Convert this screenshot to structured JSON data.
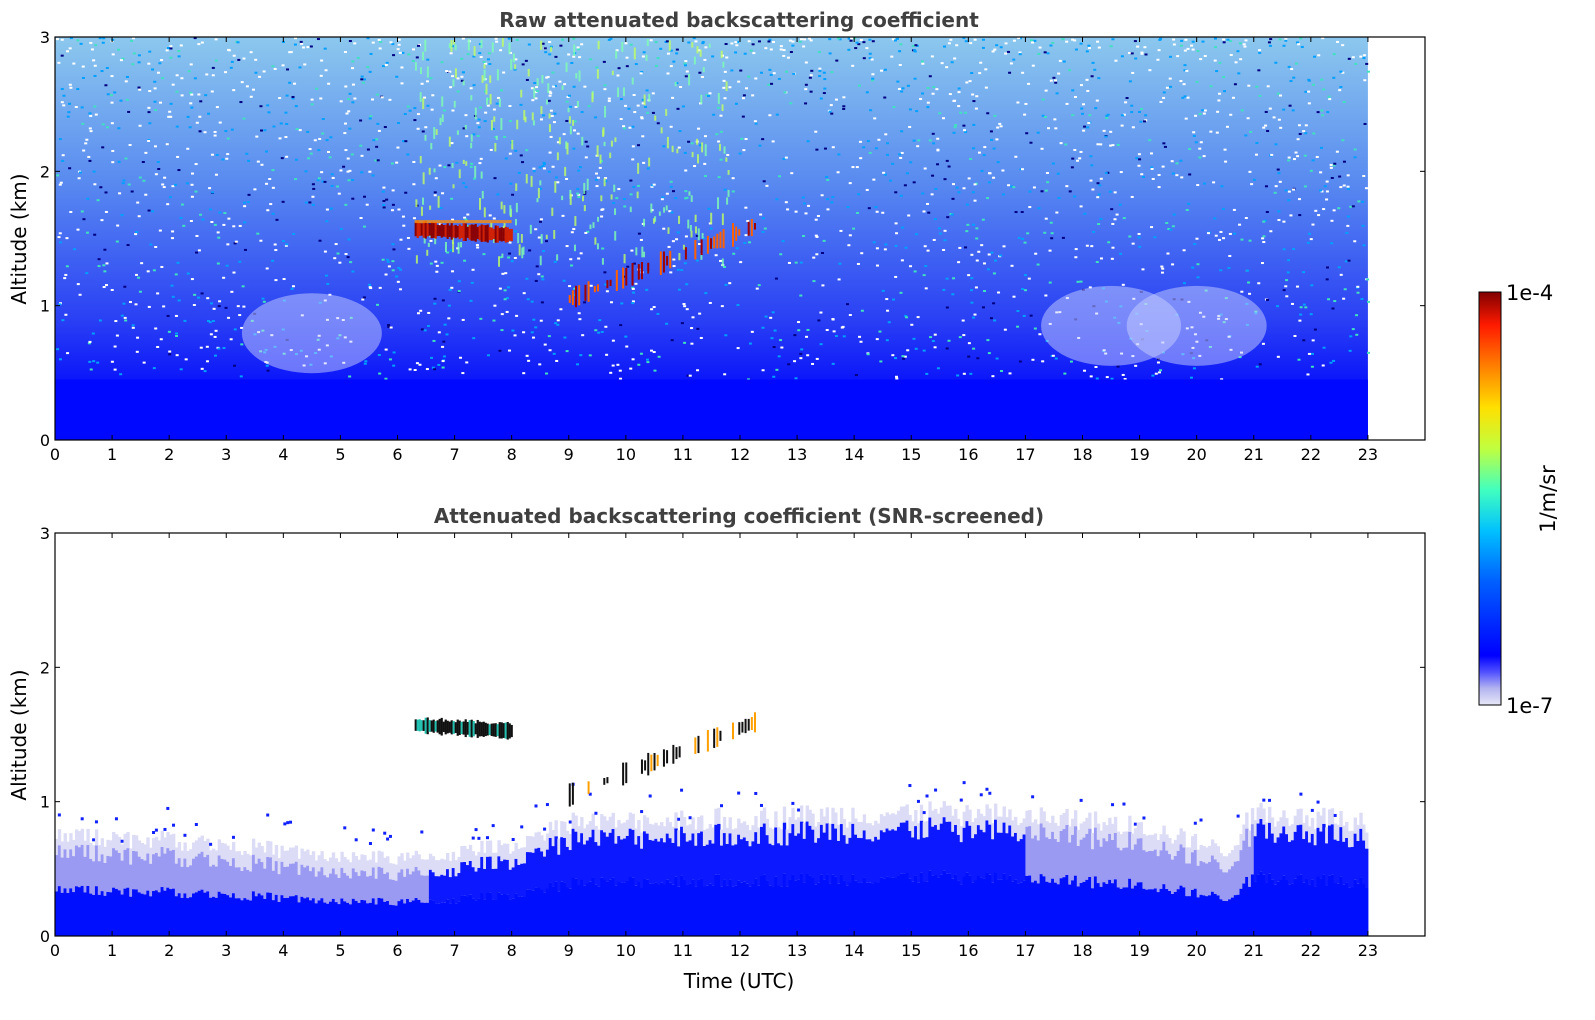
{
  "chart_data": [
    {
      "type": "heatmap",
      "title": "Raw attenuated backscattering coefficient",
      "xlabel": "",
      "ylabel": "Altitude (km)",
      "xlim": [
        0,
        24
      ],
      "ylim": [
        0,
        3
      ],
      "xticks": [
        "0",
        "1",
        "2",
        "3",
        "4",
        "5",
        "6",
        "7",
        "8",
        "9",
        "10",
        "11",
        "12",
        "13",
        "14",
        "15",
        "16",
        "17",
        "18",
        "19",
        "20",
        "21",
        "22",
        "23"
      ],
      "yticks": [
        "0",
        "1",
        "2",
        "3"
      ],
      "data_extent_hours": [
        0,
        23
      ],
      "features": {
        "boundary_layer_top_km": 0.45,
        "noise_level": "high",
        "cloud_layers": [
          {
            "t_start": 6.3,
            "t_end": 8.0,
            "alt_km": 1.57,
            "intensity": "1e-4"
          },
          {
            "t_start": 9.0,
            "t_end": 12.3,
            "alt_start_km": 1.05,
            "alt_end_km": 1.6,
            "intensity": "patchy"
          }
        ],
        "elevated_aerosol_columns": {
          "t_start": 6.3,
          "t_end": 11.8,
          "alt_km": [
            0.5,
            3.0
          ]
        }
      }
    },
    {
      "type": "heatmap",
      "title": "Attenuated backscattering coefficient (SNR-screened)",
      "xlabel": "Time (UTC)",
      "ylabel": "Altitude (km)",
      "xlim": [
        0,
        24
      ],
      "ylim": [
        0,
        3
      ],
      "xticks": [
        "0",
        "1",
        "2",
        "3",
        "4",
        "5",
        "6",
        "7",
        "8",
        "9",
        "10",
        "11",
        "12",
        "13",
        "14",
        "15",
        "16",
        "17",
        "18",
        "19",
        "20",
        "21",
        "22",
        "23"
      ],
      "yticks": [
        "0",
        "1",
        "2",
        "3"
      ],
      "data_extent_hours": [
        0,
        23
      ],
      "features": {
        "boundary_layer_profile_km": [
          [
            0,
            0.62
          ],
          [
            3,
            0.55
          ],
          [
            5,
            0.45
          ],
          [
            6.5,
            0.45
          ],
          [
            8,
            0.55
          ],
          [
            9,
            0.7
          ],
          [
            11,
            0.72
          ],
          [
            13,
            0.75
          ],
          [
            15,
            0.78
          ],
          [
            17,
            0.75
          ],
          [
            19,
            0.68
          ],
          [
            20.5,
            0.5
          ],
          [
            21,
            0.78
          ],
          [
            23,
            0.72
          ]
        ],
        "cloud_layers": [
          {
            "t_start": 6.3,
            "t_end": 8.0,
            "alt_km": 1.57
          },
          {
            "t_start": 9.0,
            "t_end": 12.3,
            "alt_start_km": 1.05,
            "alt_end_km": 1.6
          }
        ]
      }
    }
  ],
  "colorbar": {
    "label": "1/m/sr",
    "max_label": "1e-4",
    "min_label": "1e-7",
    "colors": [
      "#e8e8f8",
      "#b4b4f0",
      "#5050ff",
      "#0000ff",
      "#0060ff",
      "#00c0ff",
      "#40ffc0",
      "#c0ff40",
      "#ffe000",
      "#ff8000",
      "#ff1a00",
      "#800000"
    ]
  }
}
